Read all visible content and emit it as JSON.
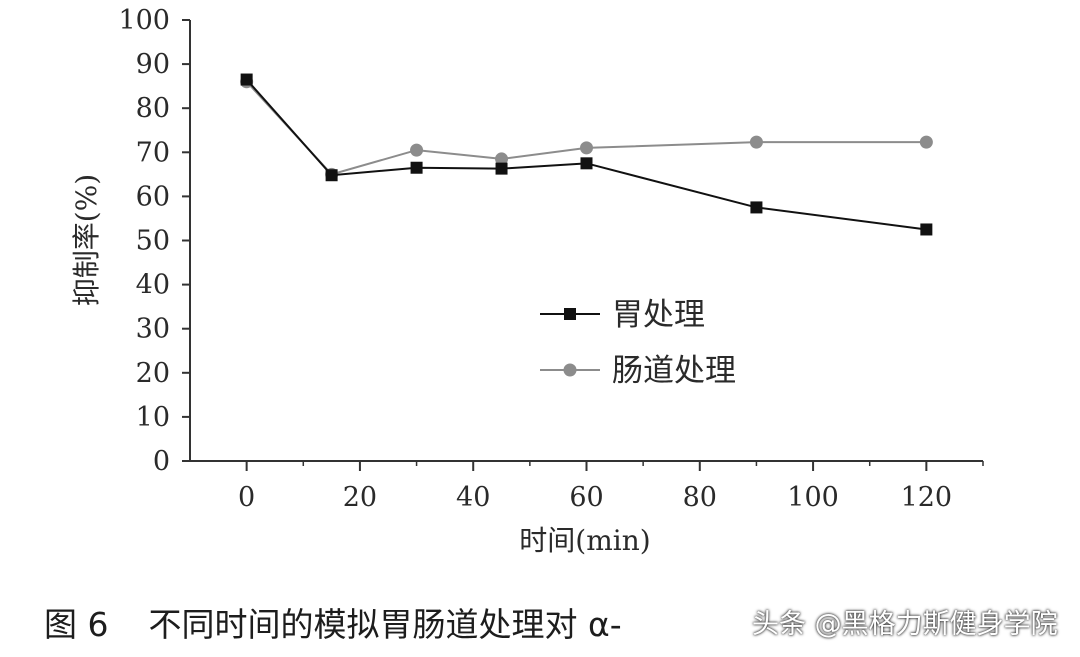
{
  "chart_data": {
    "type": "line",
    "x": [
      0,
      15,
      30,
      45,
      60,
      90,
      120
    ],
    "series": [
      {
        "name": "胃处理",
        "values": [
          86.5,
          64.8,
          66.5,
          66.3,
          67.5,
          57.5,
          52.5
        ],
        "color": "#111111",
        "marker": "square"
      },
      {
        "name": "肠道处理",
        "values": [
          86.0,
          65.0,
          70.5,
          68.5,
          71.0,
          72.3,
          72.3
        ],
        "color": "#8c8c8c",
        "marker": "circle"
      }
    ],
    "xlabel": "时间(min)",
    "ylabel": "抑制率(%)",
    "xlim": [
      -10,
      130
    ],
    "ylim": [
      0,
      100
    ],
    "xticks": [
      "0",
      "20",
      "40",
      "60",
      "80",
      "100",
      "120"
    ],
    "yticks": [
      "0",
      "10",
      "20",
      "30",
      "40",
      "50",
      "60",
      "70",
      "80",
      "90",
      "100"
    ],
    "legend": "center-right",
    "grid": false
  },
  "caption": {
    "number": "图 6",
    "text": "不同时间的模拟胃肠道处理对 α-",
    "watermark": "头条 @黑格力斯健身学院"
  }
}
